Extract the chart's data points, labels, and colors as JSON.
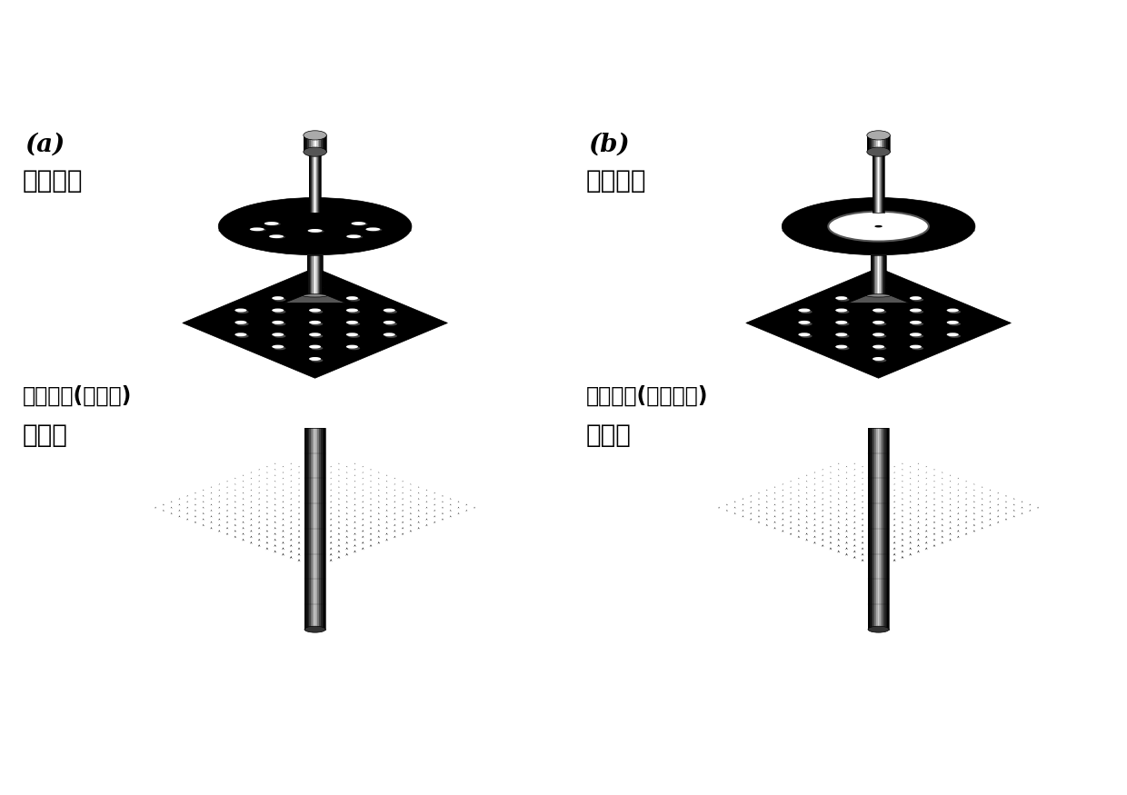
{
  "panel_a_label": "(a)",
  "panel_b_label": "(b)",
  "panel_a_beam_label": "分立光束",
  "panel_b_beam_label": "涡旋光束",
  "panel_a_surface_label": "超颖表面(金属态)",
  "panel_b_surface_label": "超颖表面(半导体态)",
  "incident_label": "入射光",
  "bg_color": "#ffffff"
}
